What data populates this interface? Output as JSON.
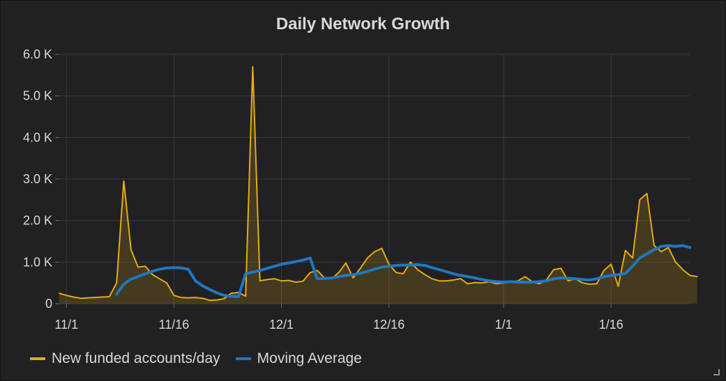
{
  "chart_data": {
    "type": "line",
    "title": "Daily Network Growth",
    "xlabel": "",
    "ylabel": "",
    "ylim": [
      0,
      6000
    ],
    "yticks": [
      {
        "value": 0,
        "label": "0"
      },
      {
        "value": 1000,
        "label": "1.0 K"
      },
      {
        "value": 2000,
        "label": "2.0 K"
      },
      {
        "value": 3000,
        "label": "3.0 K"
      },
      {
        "value": 4000,
        "label": "4.0 K"
      },
      {
        "value": 5000,
        "label": "5.0 K"
      },
      {
        "value": 6000,
        "label": "6.0 K"
      }
    ],
    "xticks": [
      {
        "date": "2017-11-01",
        "label": "11/1"
      },
      {
        "date": "2017-11-16",
        "label": "11/16"
      },
      {
        "date": "2017-12-01",
        "label": "12/1"
      },
      {
        "date": "2017-12-16",
        "label": "12/16"
      },
      {
        "date": "2018-01-01",
        "label": "1/1"
      },
      {
        "date": "2018-01-16",
        "label": "1/16"
      }
    ],
    "xlim": [
      "2017-10-31",
      "2018-01-26"
    ],
    "grid": true,
    "legend_position": "bottom-left",
    "series": [
      {
        "name": "New funded accounts/day",
        "color": "#e5ac0e",
        "fill": true,
        "points": [
          [
            "2017-10-31",
            250
          ],
          [
            "2017-11-01",
            200
          ],
          [
            "2017-11-02",
            160
          ],
          [
            "2017-11-03",
            130
          ],
          [
            "2017-11-04",
            140
          ],
          [
            "2017-11-05",
            150
          ],
          [
            "2017-11-06",
            160
          ],
          [
            "2017-11-07",
            170
          ],
          [
            "2017-11-08",
            500
          ],
          [
            "2017-11-09",
            2950
          ],
          [
            "2017-11-10",
            1300
          ],
          [
            "2017-11-11",
            880
          ],
          [
            "2017-11-12",
            900
          ],
          [
            "2017-11-13",
            700
          ],
          [
            "2017-11-14",
            600
          ],
          [
            "2017-11-15",
            500
          ],
          [
            "2017-11-16",
            200
          ],
          [
            "2017-11-17",
            150
          ],
          [
            "2017-11-18",
            140
          ],
          [
            "2017-11-19",
            150
          ],
          [
            "2017-11-20",
            130
          ],
          [
            "2017-11-21",
            80
          ],
          [
            "2017-11-22",
            90
          ],
          [
            "2017-11-23",
            120
          ],
          [
            "2017-11-24",
            250
          ],
          [
            "2017-11-25",
            270
          ],
          [
            "2017-11-26",
            180
          ],
          [
            "2017-11-27",
            5700
          ],
          [
            "2017-11-28",
            550
          ],
          [
            "2017-11-29",
            580
          ],
          [
            "2017-11-30",
            600
          ],
          [
            "2017-12-01",
            550
          ],
          [
            "2017-12-02",
            560
          ],
          [
            "2017-12-03",
            520
          ],
          [
            "2017-12-04",
            540
          ],
          [
            "2017-12-05",
            750
          ],
          [
            "2017-12-06",
            800
          ],
          [
            "2017-12-07",
            620
          ],
          [
            "2017-12-08",
            600
          ],
          [
            "2017-12-09",
            750
          ],
          [
            "2017-12-10",
            980
          ],
          [
            "2017-12-11",
            620
          ],
          [
            "2017-12-12",
            850
          ],
          [
            "2017-12-13",
            1100
          ],
          [
            "2017-12-14",
            1250
          ],
          [
            "2017-12-15",
            1330
          ],
          [
            "2017-12-16",
            950
          ],
          [
            "2017-12-17",
            750
          ],
          [
            "2017-12-18",
            720
          ],
          [
            "2017-12-19",
            1000
          ],
          [
            "2017-12-20",
            820
          ],
          [
            "2017-12-21",
            700
          ],
          [
            "2017-12-22",
            600
          ],
          [
            "2017-12-23",
            550
          ],
          [
            "2017-12-24",
            550
          ],
          [
            "2017-12-25",
            570
          ],
          [
            "2017-12-26",
            600
          ],
          [
            "2017-12-27",
            480
          ],
          [
            "2017-12-28",
            510
          ],
          [
            "2017-12-29",
            500
          ],
          [
            "2017-12-30",
            530
          ],
          [
            "2017-12-31",
            480
          ],
          [
            "2018-01-01",
            500
          ],
          [
            "2018-01-02",
            520
          ],
          [
            "2018-01-03",
            550
          ],
          [
            "2018-01-04",
            650
          ],
          [
            "2018-01-05",
            530
          ],
          [
            "2018-01-06",
            480
          ],
          [
            "2018-01-07",
            580
          ],
          [
            "2018-01-08",
            820
          ],
          [
            "2018-01-09",
            850
          ],
          [
            "2018-01-10",
            550
          ],
          [
            "2018-01-11",
            600
          ],
          [
            "2018-01-12",
            500
          ],
          [
            "2018-01-13",
            470
          ],
          [
            "2018-01-14",
            480
          ],
          [
            "2018-01-15",
            800
          ],
          [
            "2018-01-16",
            950
          ],
          [
            "2018-01-17",
            420
          ],
          [
            "2018-01-18",
            1280
          ],
          [
            "2018-01-19",
            1100
          ],
          [
            "2018-01-20",
            2500
          ],
          [
            "2018-01-21",
            2650
          ],
          [
            "2018-01-22",
            1400
          ],
          [
            "2018-01-23",
            1250
          ],
          [
            "2018-01-24",
            1350
          ],
          [
            "2018-01-25",
            1000
          ],
          [
            "2018-01-26",
            820
          ],
          [
            "2018-01-27",
            680
          ],
          [
            "2018-01-28",
            650
          ]
        ]
      },
      {
        "name": "Moving Average",
        "color": "#1f78c1",
        "fill": false,
        "points": [
          [
            "2017-11-08",
            230
          ],
          [
            "2017-11-09",
            470
          ],
          [
            "2017-11-10",
            590
          ],
          [
            "2017-11-11",
            650
          ],
          [
            "2017-11-12",
            720
          ],
          [
            "2017-11-13",
            780
          ],
          [
            "2017-11-14",
            830
          ],
          [
            "2017-11-15",
            860
          ],
          [
            "2017-11-16",
            870
          ],
          [
            "2017-11-17",
            860
          ],
          [
            "2017-11-18",
            830
          ],
          [
            "2017-11-19",
            550
          ],
          [
            "2017-11-20",
            430
          ],
          [
            "2017-11-21",
            340
          ],
          [
            "2017-11-22",
            260
          ],
          [
            "2017-11-23",
            200
          ],
          [
            "2017-11-24",
            180
          ],
          [
            "2017-11-25",
            170
          ],
          [
            "2017-11-26",
            720
          ],
          [
            "2017-11-27",
            760
          ],
          [
            "2017-11-28",
            800
          ],
          [
            "2017-11-29",
            850
          ],
          [
            "2017-11-30",
            900
          ],
          [
            "2017-12-01",
            950
          ],
          [
            "2017-12-02",
            980
          ],
          [
            "2017-12-03",
            1010
          ],
          [
            "2017-12-04",
            1050
          ],
          [
            "2017-12-05",
            1100
          ],
          [
            "2017-12-06",
            600
          ],
          [
            "2017-12-07",
            610
          ],
          [
            "2017-12-08",
            620
          ],
          [
            "2017-12-09",
            650
          ],
          [
            "2017-12-10",
            680
          ],
          [
            "2017-12-11",
            700
          ],
          [
            "2017-12-12",
            730
          ],
          [
            "2017-12-13",
            780
          ],
          [
            "2017-12-14",
            830
          ],
          [
            "2017-12-15",
            880
          ],
          [
            "2017-12-16",
            900
          ],
          [
            "2017-12-17",
            920
          ],
          [
            "2017-12-18",
            930
          ],
          [
            "2017-12-19",
            930
          ],
          [
            "2017-12-20",
            940
          ],
          [
            "2017-12-21",
            920
          ],
          [
            "2017-12-22",
            870
          ],
          [
            "2017-12-23",
            820
          ],
          [
            "2017-12-24",
            770
          ],
          [
            "2017-12-25",
            720
          ],
          [
            "2017-12-26",
            680
          ],
          [
            "2017-12-27",
            650
          ],
          [
            "2017-12-28",
            620
          ],
          [
            "2017-12-29",
            580
          ],
          [
            "2017-12-30",
            550
          ],
          [
            "2017-12-31",
            530
          ],
          [
            "2018-01-01",
            520
          ],
          [
            "2018-01-02",
            530
          ],
          [
            "2018-01-03",
            520
          ],
          [
            "2018-01-04",
            520
          ],
          [
            "2018-01-05",
            520
          ],
          [
            "2018-01-06",
            530
          ],
          [
            "2018-01-07",
            550
          ],
          [
            "2018-01-08",
            600
          ],
          [
            "2018-01-09",
            620
          ],
          [
            "2018-01-10",
            610
          ],
          [
            "2018-01-11",
            600
          ],
          [
            "2018-01-12",
            580
          ],
          [
            "2018-01-13",
            570
          ],
          [
            "2018-01-14",
            600
          ],
          [
            "2018-01-15",
            650
          ],
          [
            "2018-01-16",
            680
          ],
          [
            "2018-01-17",
            700
          ],
          [
            "2018-01-18",
            730
          ],
          [
            "2018-01-19",
            900
          ],
          [
            "2018-01-20",
            1100
          ],
          [
            "2018-01-21",
            1200
          ],
          [
            "2018-01-22",
            1300
          ],
          [
            "2018-01-23",
            1380
          ],
          [
            "2018-01-24",
            1400
          ],
          [
            "2018-01-25",
            1380
          ],
          [
            "2018-01-26",
            1400
          ],
          [
            "2018-01-27",
            1350
          ]
        ]
      }
    ]
  }
}
